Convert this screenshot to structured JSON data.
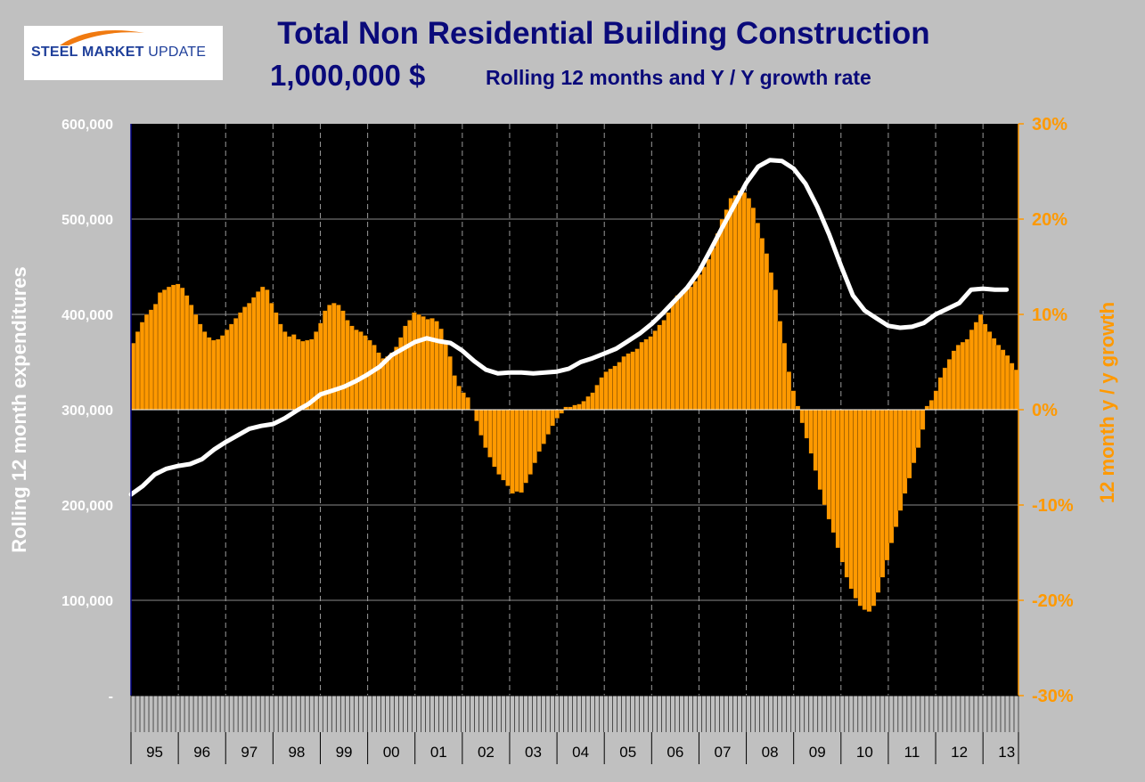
{
  "header": {
    "logo": {
      "steel": "STEEL",
      "market": "MARKET",
      "update": "UPDATE"
    },
    "title": "Total Non Residential Building Construction",
    "units": "1,000,000 $",
    "description": "Rolling 12 months and Y / Y growth rate"
  },
  "colors": {
    "background": "#c0c0c0",
    "plot_area": "#000000",
    "bars": "#ff9900",
    "line": "#ffffff",
    "title": "#0a0a7a",
    "right_axis": "#ff9900",
    "left_axis": "#ffffff"
  },
  "chart_data": {
    "type": "bar",
    "title": "Total Non Residential Building Construction",
    "ylabel": "Rolling 12 month expenditures",
    "ylabel_right": "12 month y / y growth",
    "ylim": [
      0,
      600000
    ],
    "ylim_right": [
      -30,
      30
    ],
    "yticks_left": [
      "-",
      "100,000",
      "200,000",
      "300,000",
      "400,000",
      "500,000",
      "600,000"
    ],
    "yticks_right": [
      "-30%",
      "-20%",
      "-10%",
      "0%",
      "10%",
      "20%",
      "30%"
    ],
    "year_labels": [
      "95",
      "96",
      "97",
      "98",
      "99",
      "00",
      "01",
      "02",
      "03",
      "04",
      "05",
      "06",
      "07",
      "08",
      "09",
      "10",
      "11",
      "12",
      "13"
    ],
    "grid": true,
    "series": [
      {
        "kind": "bar",
        "axis": "right",
        "values": [
          7.0,
          8.2,
          9.2,
          10.0,
          10.5,
          11.1,
          12.3,
          12.6,
          12.9,
          13.1,
          13.2,
          12.8,
          12.0,
          11.0,
          10.0,
          9.0,
          8.2,
          7.6,
          7.3,
          7.4,
          7.8,
          8.4,
          9.0,
          9.6,
          10.2,
          10.8,
          11.2,
          11.8,
          12.4,
          12.9,
          12.6,
          11.2,
          10.2,
          9.0,
          8.2,
          7.7,
          7.9,
          7.4,
          7.2,
          7.3,
          7.4,
          8.2,
          9.1,
          10.4,
          11.0,
          11.2,
          11.0,
          10.4,
          9.4,
          8.8,
          8.4,
          8.2,
          7.8,
          7.3,
          6.8,
          6.0,
          5.4,
          5.6,
          6.0,
          6.6,
          7.6,
          8.8,
          9.4,
          10.2,
          10.0,
          9.8,
          9.5,
          9.6,
          9.3,
          8.5,
          7.0,
          5.6,
          3.6,
          2.5,
          1.8,
          1.3,
          0.0,
          -1.2,
          -2.7,
          -4.0,
          -5.0,
          -6.0,
          -6.8,
          -7.4,
          -8.0,
          -8.8,
          -8.6,
          -8.7,
          -7.7,
          -6.8,
          -5.6,
          -4.4,
          -3.6,
          -2.6,
          -1.7,
          -0.9,
          -0.4,
          0.3,
          0.3,
          0.5,
          0.6,
          0.9,
          1.4,
          1.8,
          2.6,
          3.4,
          4.0,
          4.3,
          4.6,
          5.0,
          5.6,
          5.9,
          6.1,
          6.4,
          7.1,
          7.4,
          7.7,
          8.3,
          8.9,
          9.4,
          10.2,
          11.2,
          12.0,
          12.3,
          12.6,
          12.9,
          13.5,
          14.2,
          15.0,
          15.8,
          17.0,
          18.5,
          20.0,
          21.0,
          22.2,
          22.5,
          23.0,
          22.8,
          22.2,
          21.2,
          19.6,
          18.0,
          16.4,
          14.4,
          12.6,
          9.3,
          7.0,
          4.0,
          2.0,
          0.4,
          -1.4,
          -3.0,
          -4.6,
          -6.4,
          -8.4,
          -10.0,
          -11.5,
          -12.9,
          -14.5,
          -16.0,
          -17.6,
          -18.8,
          -19.8,
          -20.6,
          -21.0,
          -21.2,
          -20.6,
          -19.2,
          -17.6,
          -15.8,
          -14.0,
          -12.3,
          -10.6,
          -8.8,
          -7.2,
          -5.6,
          -4.0,
          -2.1,
          0.4,
          1.0,
          2.0,
          3.4,
          4.4,
          5.3,
          6.2,
          6.8,
          7.1,
          7.4,
          8.4,
          9.2,
          10.0,
          9.0,
          8.2,
          7.5,
          6.8,
          6.3,
          5.7,
          4.9,
          4.2
        ]
      },
      {
        "kind": "line",
        "axis": "left",
        "points": [
          [
            1995.0,
            211000
          ],
          [
            1995.25,
            220000
          ],
          [
            1995.5,
            232000
          ],
          [
            1995.75,
            238000
          ],
          [
            1996.0,
            241000
          ],
          [
            1996.25,
            243000
          ],
          [
            1996.5,
            248000
          ],
          [
            1996.75,
            258000
          ],
          [
            1997.0,
            266000
          ],
          [
            1997.25,
            273000
          ],
          [
            1997.5,
            280000
          ],
          [
            1997.75,
            283000
          ],
          [
            1998.0,
            285000
          ],
          [
            1998.25,
            291000
          ],
          [
            1998.5,
            299000
          ],
          [
            1998.75,
            306000
          ],
          [
            1999.0,
            316000
          ],
          [
            1999.25,
            320000
          ],
          [
            1999.5,
            324000
          ],
          [
            1999.75,
            330000
          ],
          [
            2000.0,
            337000
          ],
          [
            2000.25,
            345000
          ],
          [
            2000.5,
            357000
          ],
          [
            2000.75,
            364000
          ],
          [
            2001.0,
            371000
          ],
          [
            2001.25,
            375000
          ],
          [
            2001.5,
            372000
          ],
          [
            2001.75,
            370000
          ],
          [
            2002.0,
            362000
          ],
          [
            2002.25,
            351000
          ],
          [
            2002.5,
            342000
          ],
          [
            2002.75,
            338000
          ],
          [
            2003.0,
            339000
          ],
          [
            2003.25,
            339000
          ],
          [
            2003.5,
            338000
          ],
          [
            2003.75,
            339000
          ],
          [
            2004.0,
            340000
          ],
          [
            2004.25,
            343000
          ],
          [
            2004.5,
            350000
          ],
          [
            2004.75,
            354000
          ],
          [
            2005.0,
            359000
          ],
          [
            2005.25,
            364000
          ],
          [
            2005.5,
            372000
          ],
          [
            2005.75,
            380000
          ],
          [
            2006.0,
            390000
          ],
          [
            2006.25,
            402000
          ],
          [
            2006.5,
            415000
          ],
          [
            2006.75,
            428000
          ],
          [
            2007.0,
            445000
          ],
          [
            2007.25,
            468000
          ],
          [
            2007.5,
            492000
          ],
          [
            2007.75,
            515000
          ],
          [
            2008.0,
            538000
          ],
          [
            2008.25,
            555000
          ],
          [
            2008.5,
            562000
          ],
          [
            2008.75,
            561000
          ],
          [
            2009.0,
            553000
          ],
          [
            2009.25,
            537000
          ],
          [
            2009.5,
            513000
          ],
          [
            2009.75,
            484000
          ],
          [
            2010.0,
            451000
          ],
          [
            2010.25,
            420000
          ],
          [
            2010.5,
            404000
          ],
          [
            2010.75,
            396000
          ],
          [
            2011.0,
            388000
          ],
          [
            2011.25,
            386000
          ],
          [
            2011.5,
            387000
          ],
          [
            2011.75,
            391000
          ],
          [
            2012.0,
            400000
          ],
          [
            2012.25,
            406000
          ],
          [
            2012.5,
            412000
          ],
          [
            2012.75,
            426000
          ],
          [
            2013.0,
            427000
          ],
          [
            2013.25,
            426000
          ],
          [
            2013.5,
            426000
          ]
        ]
      }
    ]
  }
}
